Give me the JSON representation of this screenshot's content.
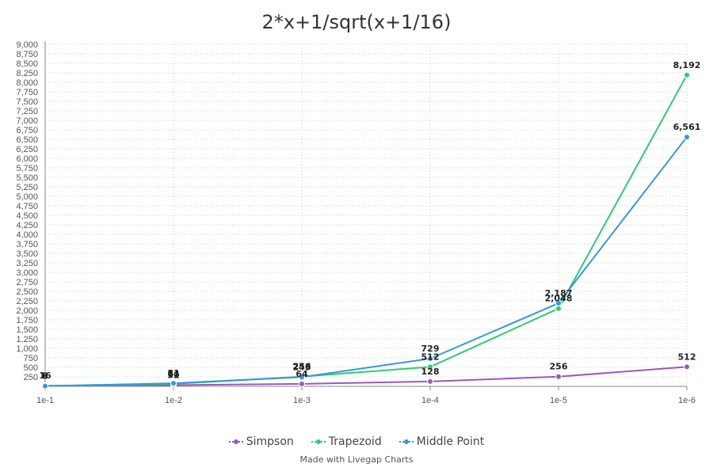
{
  "chart_data": {
    "type": "line",
    "title": "2*x+1/sqrt(x+1/16)",
    "xlabel": "",
    "ylabel": "",
    "categories": [
      "1e-1",
      "1e-2",
      "1e-3",
      "1e-4",
      "1e-5",
      "1e-6"
    ],
    "ylim": [
      0,
      9000
    ],
    "yticks": [
      250,
      500,
      750,
      1000,
      1250,
      1500,
      1750,
      2000,
      2250,
      2500,
      2750,
      3000,
      3250,
      3500,
      3750,
      4000,
      4250,
      4500,
      4750,
      5000,
      5250,
      5500,
      5750,
      6000,
      6250,
      6500,
      6750,
      7000,
      7250,
      7500,
      7750,
      8000,
      8250,
      8500,
      8750,
      9000
    ],
    "series": [
      {
        "name": "Simpson",
        "color": "#9b59b6",
        "values": [
          16,
          32,
          64,
          128,
          256,
          512
        ]
      },
      {
        "name": "Trapezoid",
        "color": "#2ecc71",
        "values": [
          8,
          64,
          256,
          512,
          2048,
          8192
        ]
      },
      {
        "name": "Middle Point",
        "color": "#3498db",
        "values": [
          9,
          81,
          243,
          729,
          2187,
          6561
        ]
      }
    ],
    "grid": true,
    "legend_position": "bottom"
  },
  "credit": "Made with Livegap Charts"
}
